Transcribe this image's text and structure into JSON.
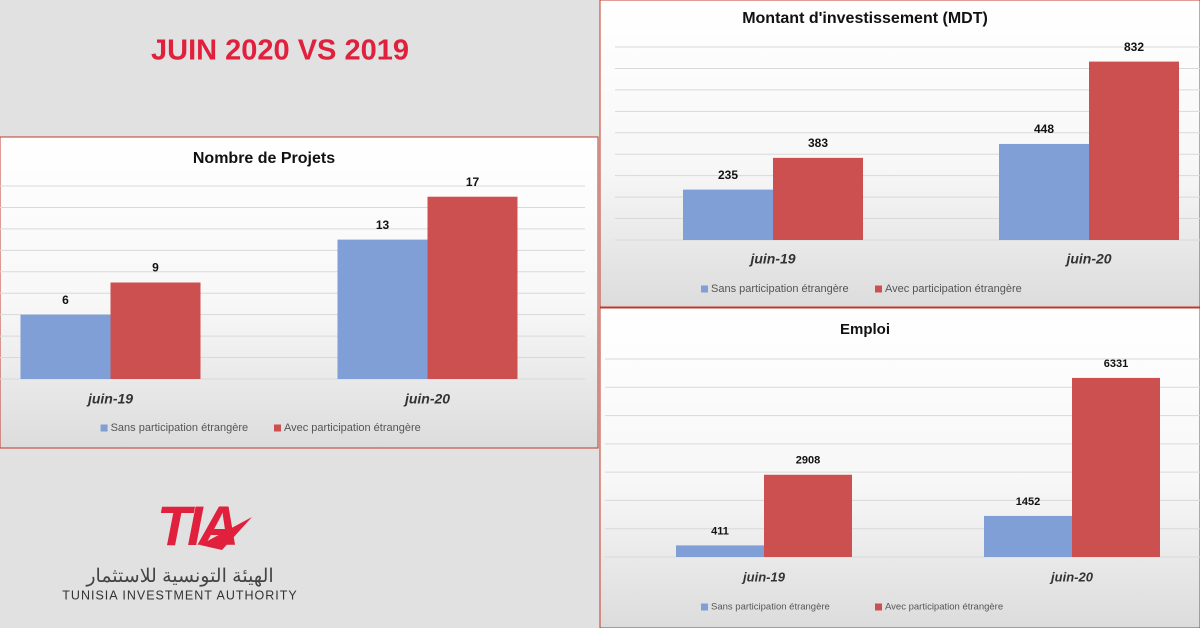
{
  "header": {
    "title": "JUIN 2020 VS 2019"
  },
  "logo": {
    "mark": "TIA",
    "arabic": "الهيئة التونسية للاستثمار",
    "name": "TUNISIA INVESTMENT AUTHORITY"
  },
  "chart_data": [
    {
      "type": "bar",
      "title": "Nombre de Projets",
      "categories": [
        "juin-19",
        "juin-20"
      ],
      "series": [
        {
          "name": "Sans participation étrangère",
          "color": "#7f9fd6",
          "values": [
            6,
            13
          ]
        },
        {
          "name": "Avec participation étrangère",
          "color": "#cd5050",
          "values": [
            9,
            17
          ]
        }
      ],
      "ylim": [
        0,
        18
      ],
      "yticks": [
        0,
        2,
        4,
        6,
        8,
        10,
        12,
        14,
        16,
        18
      ],
      "grid": true,
      "legend": "bottom"
    },
    {
      "type": "bar",
      "title": "Montant d'investissement (MDT)",
      "categories": [
        "juin-19",
        "juin-20"
      ],
      "series": [
        {
          "name": "Sans participation étrangère",
          "color": "#7f9fd6",
          "values": [
            235,
            448
          ]
        },
        {
          "name": "Avec participation étrangère",
          "color": "#cd5050",
          "values": [
            383,
            832
          ]
        }
      ],
      "ylim": [
        0,
        900
      ],
      "yticks": [
        0,
        100,
        200,
        300,
        400,
        500,
        600,
        700,
        800,
        900
      ],
      "grid": true,
      "legend": "bottom"
    },
    {
      "type": "bar",
      "title": "Emploi",
      "categories": [
        "juin-19",
        "juin-20"
      ],
      "series": [
        {
          "name": "Sans participation étrangère",
          "color": "#7f9fd6",
          "values": [
            411,
            1452
          ]
        },
        {
          "name": "Avec participation étrangère",
          "color": "#cd5050",
          "values": [
            2908,
            6331
          ]
        }
      ],
      "ylim": [
        0,
        7000
      ],
      "yticks": [
        0,
        1000,
        2000,
        3000,
        4000,
        5000,
        6000,
        7000
      ],
      "grid": true,
      "legend": "bottom"
    }
  ]
}
